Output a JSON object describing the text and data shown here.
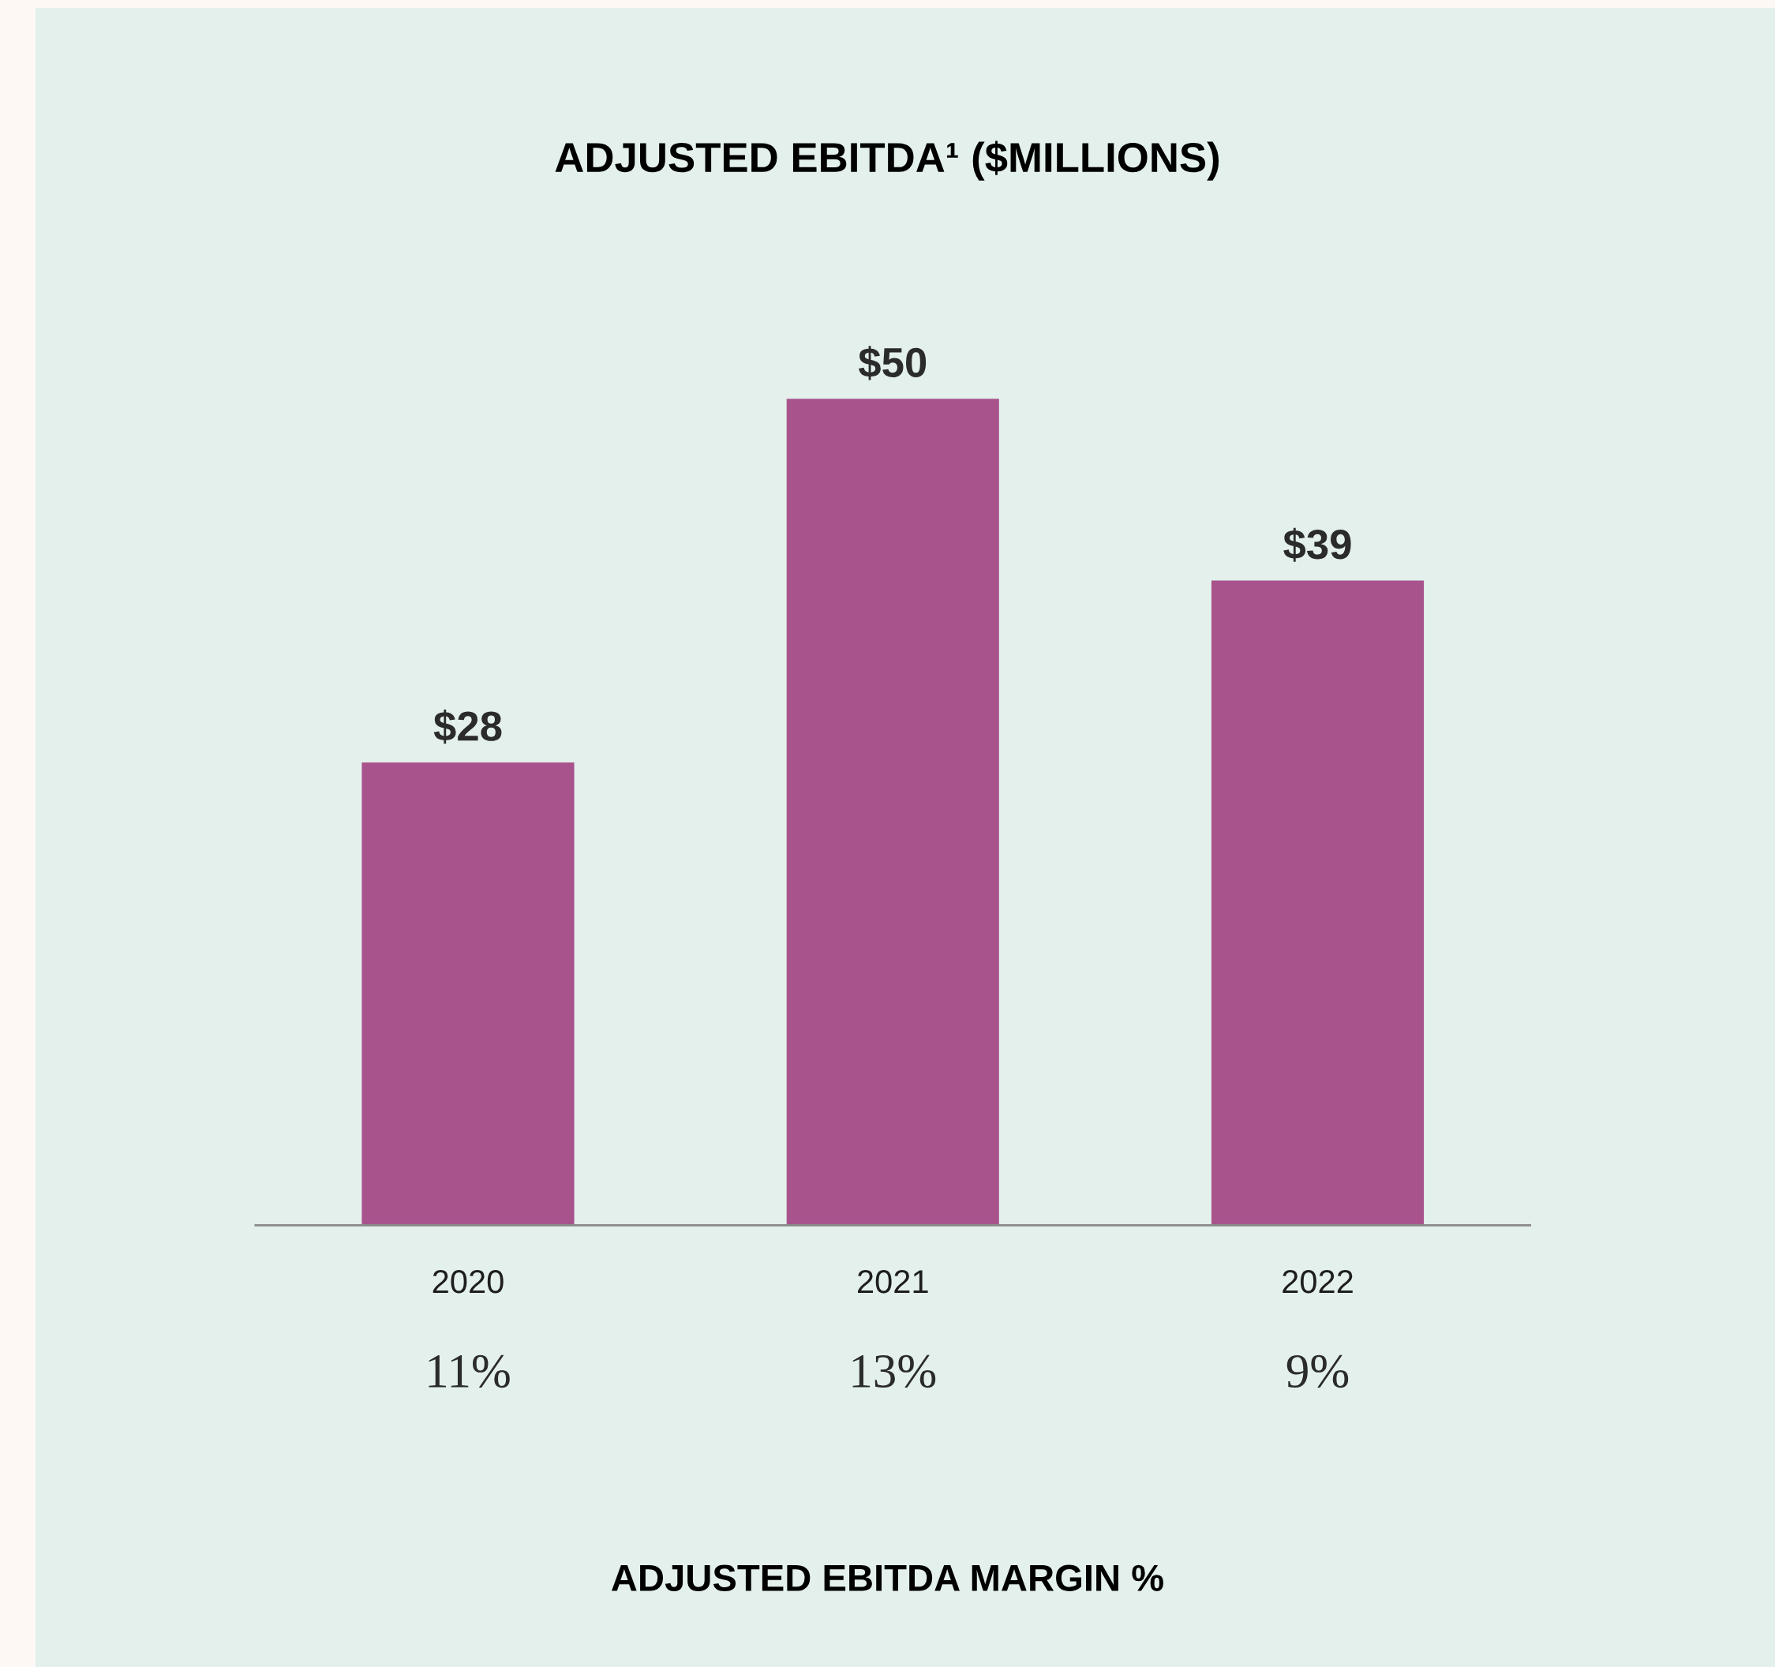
{
  "chart_data": {
    "type": "bar",
    "title": "ADJUSTED EBITDA¹ ($MILLIONS)",
    "categories": [
      "2020",
      "2021",
      "2022"
    ],
    "values": [
      28,
      50,
      39
    ],
    "color": "#a8538c",
    "value_labels": [
      "$28",
      "$50",
      "$39"
    ],
    "grid": false,
    "legend": false,
    "annotations": [
      "11%",
      "13%",
      "9%",
      "ADJUSTED EBITDA MARGIN %"
    ]
  }
}
